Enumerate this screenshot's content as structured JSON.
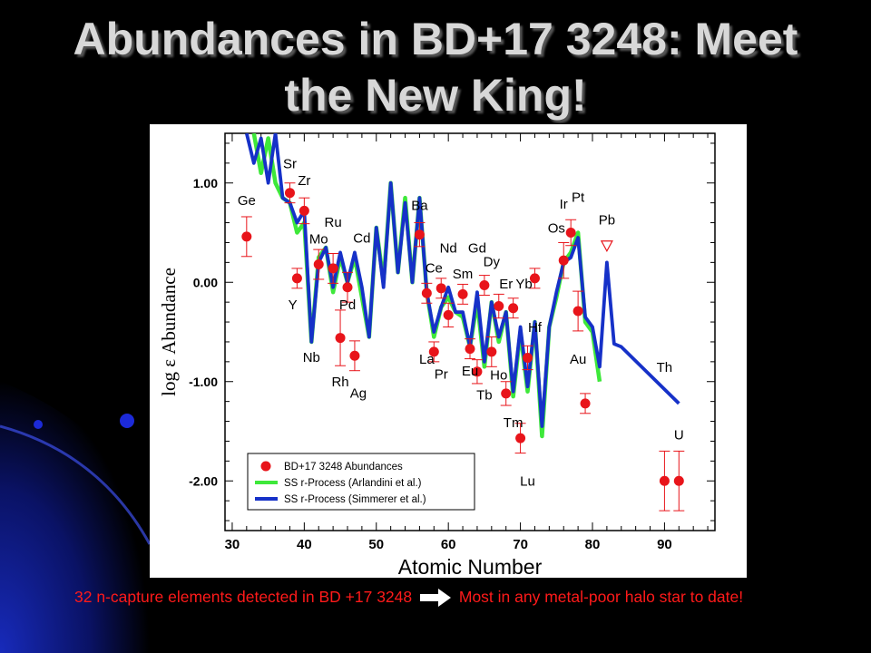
{
  "slide": {
    "title": "Abundances in BD+17 3248: Meet the New King!",
    "caption_part1": "32 n-capture elements detected in BD +17 3248",
    "caption_part2": "Most in any metal-poor halo star to date!",
    "caption_color": "#ff1a1a"
  },
  "chart_data": {
    "type": "scatter",
    "xlabel": "Atomic Number",
    "ylabel": "log ε Abundance",
    "xlim": [
      29,
      97
    ],
    "ylim": [
      -2.5,
      1.5
    ],
    "xticks": [
      30,
      40,
      50,
      60,
      70,
      80,
      90
    ],
    "yticks": [
      -2.0,
      -1.0,
      0.0,
      1.0
    ],
    "ytick_labels": [
      "-2.00",
      "-1.00",
      "0.00",
      "1.00"
    ],
    "legend_position": "bottom-left",
    "series": [
      {
        "name": "BD+17 3248 Abundances",
        "kind": "points",
        "color": "#e8141a",
        "points": [
          {
            "z": 32,
            "y": 0.46,
            "err": 0.2
          },
          {
            "z": 38,
            "y": 0.9,
            "err": 0.1
          },
          {
            "z": 39,
            "y": 0.04,
            "err": 0.1
          },
          {
            "z": 40,
            "y": 0.72,
            "err": 0.13
          },
          {
            "z": 42,
            "y": 0.18,
            "err": 0.15
          },
          {
            "z": 44,
            "y": 0.14,
            "err": 0.15
          },
          {
            "z": 45,
            "y": -0.56,
            "err": 0.28
          },
          {
            "z": 46,
            "y": -0.05,
            "err": 0.15
          },
          {
            "z": 47,
            "y": -0.74,
            "err": 0.15
          },
          {
            "z": 56,
            "y": 0.48,
            "err": 0.12
          },
          {
            "z": 57,
            "y": -0.11,
            "err": 0.1
          },
          {
            "z": 58,
            "y": -0.7,
            "err": 0.1
          },
          {
            "z": 59,
            "y": -0.06,
            "err": 0.1
          },
          {
            "z": 60,
            "y": -0.33,
            "err": 0.12
          },
          {
            "z": 62,
            "y": -0.12,
            "err": 0.1
          },
          {
            "z": 63,
            "y": -0.67,
            "err": 0.1
          },
          {
            "z": 64,
            "y": -0.9,
            "err": 0.12
          },
          {
            "z": 65,
            "y": -0.03,
            "err": 0.1
          },
          {
            "z": 66,
            "y": -0.7,
            "err": 0.15
          },
          {
            "z": 67,
            "y": -0.24,
            "err": 0.12
          },
          {
            "z": 68,
            "y": -1.12,
            "err": 0.12
          },
          {
            "z": 69,
            "y": -0.26,
            "err": 0.1
          },
          {
            "z": 70,
            "y": -1.57,
            "err": 0.15
          },
          {
            "z": 71,
            "y": -0.76,
            "err": 0.12
          },
          {
            "z": 72,
            "y": 0.04,
            "err": 0.1
          },
          {
            "z": 76,
            "y": 0.22,
            "err": 0.18
          },
          {
            "z": 77,
            "y": 0.5,
            "err": 0.13
          },
          {
            "z": 78,
            "y": -0.29,
            "err": 0.2
          },
          {
            "z": 79,
            "y": -1.22,
            "err": 0.1
          },
          {
            "z": 90,
            "y": -2.0,
            "err": 0.3
          },
          {
            "z": 92,
            "y": -2.0,
            "err": 0.3
          }
        ],
        "upper_limits": [
          {
            "z": 82,
            "y": 0.37
          }
        ]
      },
      {
        "name": "SS r-Process (Arlandini et al.)",
        "kind": "line",
        "color": "#3ee83a",
        "x": [
          33,
          34,
          35,
          36,
          37,
          38,
          39,
          40,
          41,
          42,
          43,
          44,
          45,
          46,
          47,
          48,
          49,
          50,
          51,
          52,
          53,
          54,
          55,
          56,
          57,
          58,
          59,
          60,
          61,
          62,
          63,
          64,
          65,
          66,
          67,
          68,
          69,
          70,
          71,
          72,
          73,
          74,
          75,
          76,
          77,
          78,
          79,
          80,
          81
        ],
        "y": [
          1.5,
          1.1,
          1.45,
          1.0,
          0.85,
          0.8,
          0.5,
          0.6,
          -0.6,
          0.25,
          0.35,
          -0.1,
          0.25,
          0.0,
          0.25,
          -0.15,
          -0.55,
          0.55,
          0.0,
          1.0,
          0.1,
          0.85,
          0.0,
          0.85,
          -0.1,
          -0.55,
          -0.25,
          -0.15,
          -0.3,
          -0.35,
          -0.65,
          -0.2,
          -0.85,
          -0.2,
          -0.6,
          -0.3,
          -1.15,
          -0.5,
          -1.1,
          -0.4,
          -1.55,
          -0.45,
          -0.15,
          0.2,
          0.3,
          0.5,
          -0.4,
          -0.5,
          -1.0
        ]
      },
      {
        "name": "SS r-Process (Simmerer et al.)",
        "kind": "line",
        "color": "#1631c8",
        "x": [
          32,
          33,
          34,
          35,
          36,
          37,
          38,
          39,
          40,
          41,
          42,
          43,
          44,
          45,
          46,
          47,
          48,
          49,
          50,
          51,
          52,
          53,
          54,
          55,
          56,
          57,
          58,
          59,
          60,
          61,
          62,
          63,
          64,
          65,
          66,
          67,
          68,
          69,
          70,
          71,
          72,
          73,
          74,
          75,
          76,
          77,
          78,
          79,
          80,
          81,
          82,
          83,
          84,
          92
        ],
        "y": [
          1.5,
          1.2,
          1.45,
          1.0,
          1.5,
          0.85,
          0.8,
          0.6,
          0.72,
          -0.6,
          0.2,
          0.35,
          -0.05,
          0.3,
          0.0,
          0.3,
          -0.05,
          -0.55,
          0.55,
          -0.05,
          1.0,
          0.1,
          0.8,
          0.0,
          0.85,
          -0.1,
          -0.5,
          -0.25,
          -0.05,
          -0.3,
          -0.3,
          -0.65,
          -0.1,
          -0.8,
          -0.2,
          -0.55,
          -0.3,
          -1.1,
          -0.45,
          -1.05,
          -0.4,
          -1.45,
          -0.45,
          -0.1,
          0.2,
          0.25,
          0.45,
          -0.35,
          -0.45,
          -0.85,
          0.2,
          -0.62,
          -0.65,
          -1.22
        ]
      }
    ],
    "annotations": [
      {
        "text": "Ge",
        "z": 32,
        "y": 0.78
      },
      {
        "text": "Sr",
        "z": 38,
        "y": 1.15
      },
      {
        "text": "Zr",
        "z": 40,
        "y": 0.98
      },
      {
        "text": "Y",
        "z": 38.4,
        "y": -0.27
      },
      {
        "text": "Ru",
        "z": 44,
        "y": 0.56
      },
      {
        "text": "Mo",
        "z": 42,
        "y": 0.39
      },
      {
        "text": "Cd",
        "z": 48,
        "y": 0.4
      },
      {
        "text": "Pd",
        "z": 46,
        "y": -0.27
      },
      {
        "text": "Nb",
        "z": 41,
        "y": -0.8
      },
      {
        "text": "Rh",
        "z": 45,
        "y": -1.05
      },
      {
        "text": "Ag",
        "z": 47.5,
        "y": -1.16
      },
      {
        "text": "Ba",
        "z": 56,
        "y": 0.73
      },
      {
        "text": "Ce",
        "z": 58,
        "y": 0.1
      },
      {
        "text": "Nd",
        "z": 60,
        "y": 0.3
      },
      {
        "text": "Gd",
        "z": 64,
        "y": 0.3
      },
      {
        "text": "Sm",
        "z": 62,
        "y": 0.04
      },
      {
        "text": "Dy",
        "z": 66,
        "y": 0.16
      },
      {
        "text": "Er",
        "z": 68,
        "y": -0.06
      },
      {
        "text": "Yb",
        "z": 70.5,
        "y": -0.06
      },
      {
        "text": "La",
        "z": 57,
        "y": -0.82
      },
      {
        "text": "Pr",
        "z": 59,
        "y": -0.97
      },
      {
        "text": "Eu",
        "z": 63,
        "y": -0.94
      },
      {
        "text": "Ho",
        "z": 67,
        "y": -0.98
      },
      {
        "text": "Tb",
        "z": 65,
        "y": -1.18
      },
      {
        "text": "Hf",
        "z": 72,
        "y": -0.5
      },
      {
        "text": "Tm",
        "z": 69,
        "y": -1.46
      },
      {
        "text": "Lu",
        "z": 71,
        "y": -2.05
      },
      {
        "text": "Os",
        "z": 75,
        "y": 0.5
      },
      {
        "text": "Ir",
        "z": 76,
        "y": 0.74
      },
      {
        "text": "Pt",
        "z": 78,
        "y": 0.81
      },
      {
        "text": "Pb",
        "z": 82,
        "y": 0.58
      },
      {
        "text": "Au",
        "z": 78,
        "y": -0.82
      },
      {
        "text": "Th",
        "z": 90,
        "y": -0.9
      },
      {
        "text": "U",
        "z": 92,
        "y": -1.58
      }
    ]
  }
}
